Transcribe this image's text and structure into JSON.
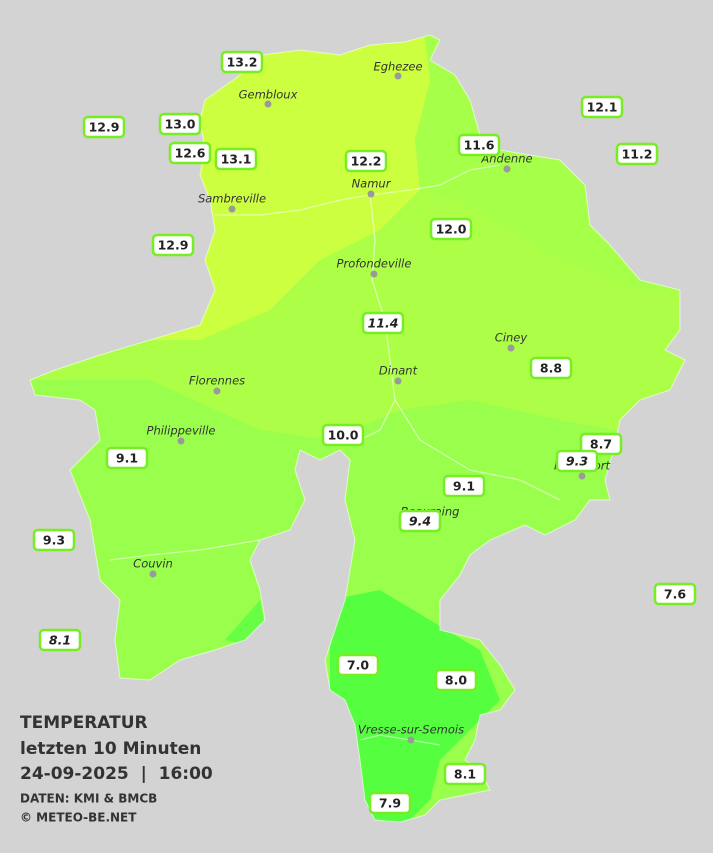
{
  "title": {
    "heading": "TEMPERATUR",
    "subtitle": "letzten 10 Minuten",
    "datetime": "24-09-2025  |  16:00",
    "source": "DATEN: KMI & BMCB",
    "credit": "© METEO-BE.NET"
  },
  "towns": [
    {
      "name": "Eghezee"
    },
    {
      "name": "Gembloux"
    },
    {
      "name": "Andenne"
    },
    {
      "name": "Namur"
    },
    {
      "name": "Sambreville"
    },
    {
      "name": "Profondeville"
    },
    {
      "name": "Ciney"
    },
    {
      "name": "Dinant"
    },
    {
      "name": "Florennes"
    },
    {
      "name": "Philippeville"
    },
    {
      "name": "Rochefort"
    },
    {
      "name": "Beauraing"
    },
    {
      "name": "Couvin"
    },
    {
      "name": "Vresse-sur-Semois"
    }
  ],
  "stations": [
    {
      "label": "13.2"
    },
    {
      "label": "12.9"
    },
    {
      "label": "13.0"
    },
    {
      "label": "12.6"
    },
    {
      "label": "13.1"
    },
    {
      "label": "12.2"
    },
    {
      "label": "11.6"
    },
    {
      "label": "12.1"
    },
    {
      "label": "11.2"
    },
    {
      "label": "12.9"
    },
    {
      "label": "12.0"
    },
    {
      "label": "11.4"
    },
    {
      "label": "8.8"
    },
    {
      "label": "10.0"
    },
    {
      "label": "8.7"
    },
    {
      "label": "9.3"
    },
    {
      "label": "9.1"
    },
    {
      "label": "9.1"
    },
    {
      "label": "9.4"
    },
    {
      "label": "9.3"
    },
    {
      "label": "7.6"
    },
    {
      "label": "8.1"
    },
    {
      "label": "7.0"
    },
    {
      "label": "8.0"
    },
    {
      "label": "8.1"
    },
    {
      "label": "7.9"
    }
  ]
}
